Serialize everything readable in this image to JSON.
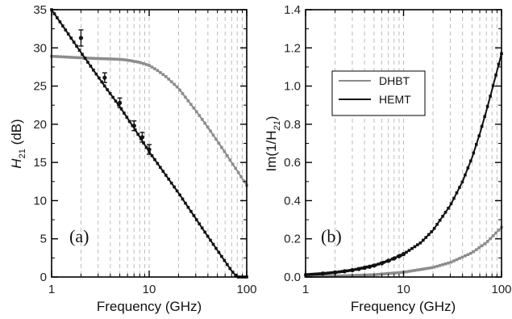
{
  "colors": {
    "dhbt": "#8c8c8c",
    "hemt": "#111111",
    "grid": "#bdbdbd",
    "frame": "#000000"
  },
  "chart_data": [
    {
      "type": "line",
      "panel_label": "(a)",
      "xlabel": "Frequency (GHz)",
      "ylabel": {
        "main": "H",
        "sub": "21",
        "tail": " (dB)"
      },
      "xscale": "log",
      "xlim": [
        1,
        100
      ],
      "ylim": [
        0,
        35
      ],
      "x_ticks": [
        "1",
        "10",
        "100"
      ],
      "y_ticks": [
        "0",
        "5",
        "10",
        "15",
        "20",
        "25",
        "30",
        "35"
      ],
      "grid": "vertical dashed at minor log ticks",
      "series": [
        {
          "id": "dhbt",
          "color": "#8c8c8c",
          "x": [
            1,
            2,
            3,
            4,
            5,
            6,
            8,
            10,
            12,
            15,
            20,
            25,
            30,
            40,
            50,
            60,
            70,
            80,
            90,
            100
          ],
          "y": [
            28.9,
            28.7,
            28.6,
            28.55,
            28.5,
            28.4,
            28.1,
            27.7,
            27.1,
            26.2,
            24.7,
            23.1,
            21.8,
            19.6,
            17.8,
            16.3,
            15.0,
            13.9,
            12.9,
            12.0
          ]
        },
        {
          "id": "hemt",
          "color": "#111111",
          "x": [
            1,
            2,
            3.5,
            5,
            7,
            10,
            20,
            40,
            70,
            80,
            100
          ],
          "y": [
            35.0,
            29.4,
            25.0,
            22.3,
            19.5,
            16.4,
            11.0,
            5.3,
            0.8,
            0.0,
            0.0
          ],
          "markers_x": [
            2,
            3.5,
            5,
            7,
            8.5,
            10
          ],
          "markers_y": [
            31.3,
            26.1,
            22.8,
            19.8,
            18.3,
            16.7
          ]
        }
      ]
    },
    {
      "type": "line",
      "panel_label": "(b)",
      "xlabel": "Frequency (GHz)",
      "ylabel": {
        "main": "Im(1/H",
        "sub": "21",
        "tail": ")"
      },
      "xscale": "log",
      "xlim": [
        1,
        100
      ],
      "ylim": [
        0,
        1.4
      ],
      "x_ticks": [
        "1",
        "10",
        "100"
      ],
      "y_ticks": [
        "0.0",
        "0.2",
        "0.4",
        "0.6",
        "0.8",
        "1.0",
        "1.2",
        "1.4"
      ],
      "legend": {
        "position": "top-right",
        "entries": [
          {
            "label": "DHBT",
            "color": "#8c8c8c"
          },
          {
            "label": "HEMT",
            "color": "#111111"
          }
        ]
      },
      "series": [
        {
          "id": "dhbt",
          "color": "#8c8c8c",
          "x": [
            1,
            2,
            5,
            10,
            20,
            30,
            50,
            70,
            100
          ],
          "y": [
            0.003,
            0.005,
            0.012,
            0.025,
            0.05,
            0.076,
            0.127,
            0.18,
            0.26
          ]
        },
        {
          "id": "hemt",
          "color": "#111111",
          "x": [
            1,
            1.5,
            2,
            3,
            5,
            7,
            10,
            15,
            20,
            30,
            40,
            50,
            60,
            70,
            80,
            90,
            100
          ],
          "y": [
            0.012,
            0.018,
            0.024,
            0.036,
            0.06,
            0.085,
            0.12,
            0.18,
            0.245,
            0.375,
            0.5,
            0.625,
            0.75,
            0.87,
            0.98,
            1.08,
            1.17
          ],
          "markers_x": [
            1.5,
            2,
            2.5,
            3,
            3.5,
            4,
            4.5,
            5,
            6,
            7,
            8,
            9,
            10
          ],
          "markers_y": [
            0.018,
            0.024,
            0.03,
            0.036,
            0.042,
            0.048,
            0.054,
            0.06,
            0.072,
            0.085,
            0.097,
            0.109,
            0.12
          ]
        }
      ]
    }
  ]
}
